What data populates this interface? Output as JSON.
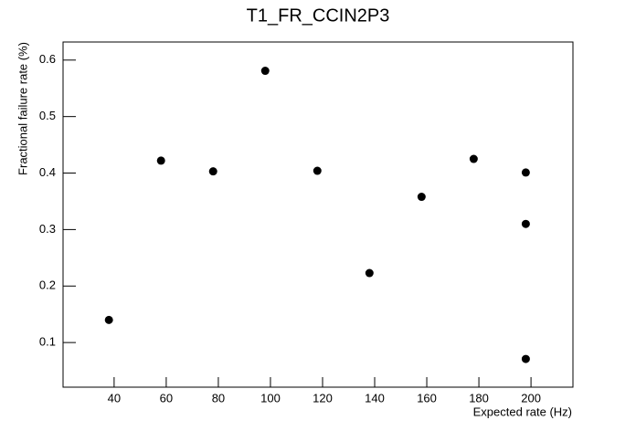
{
  "chart_data": {
    "type": "scatter",
    "title": "T1_FR_CCIN2P3",
    "x_label": "Expected rate (Hz)",
    "y_label": "Fractional failure rate (%)",
    "x": [
      38,
      58,
      78,
      98,
      118,
      138,
      158,
      178,
      198,
      198,
      198
    ],
    "values": [
      0.14,
      0.422,
      0.403,
      0.581,
      0.404,
      0.223,
      0.358,
      0.425,
      0.401,
      0.31,
      0.071
    ],
    "color": "#000000",
    "xlim": [
      20.4,
      216.1
    ],
    "xticks": [
      40,
      60,
      80,
      100,
      120,
      140,
      160,
      180,
      200
    ],
    "ylim": [
      0.021,
      0.632
    ],
    "yticks": [
      0.1,
      0.2,
      0.3,
      0.4,
      0.5,
      0.6
    ]
  }
}
